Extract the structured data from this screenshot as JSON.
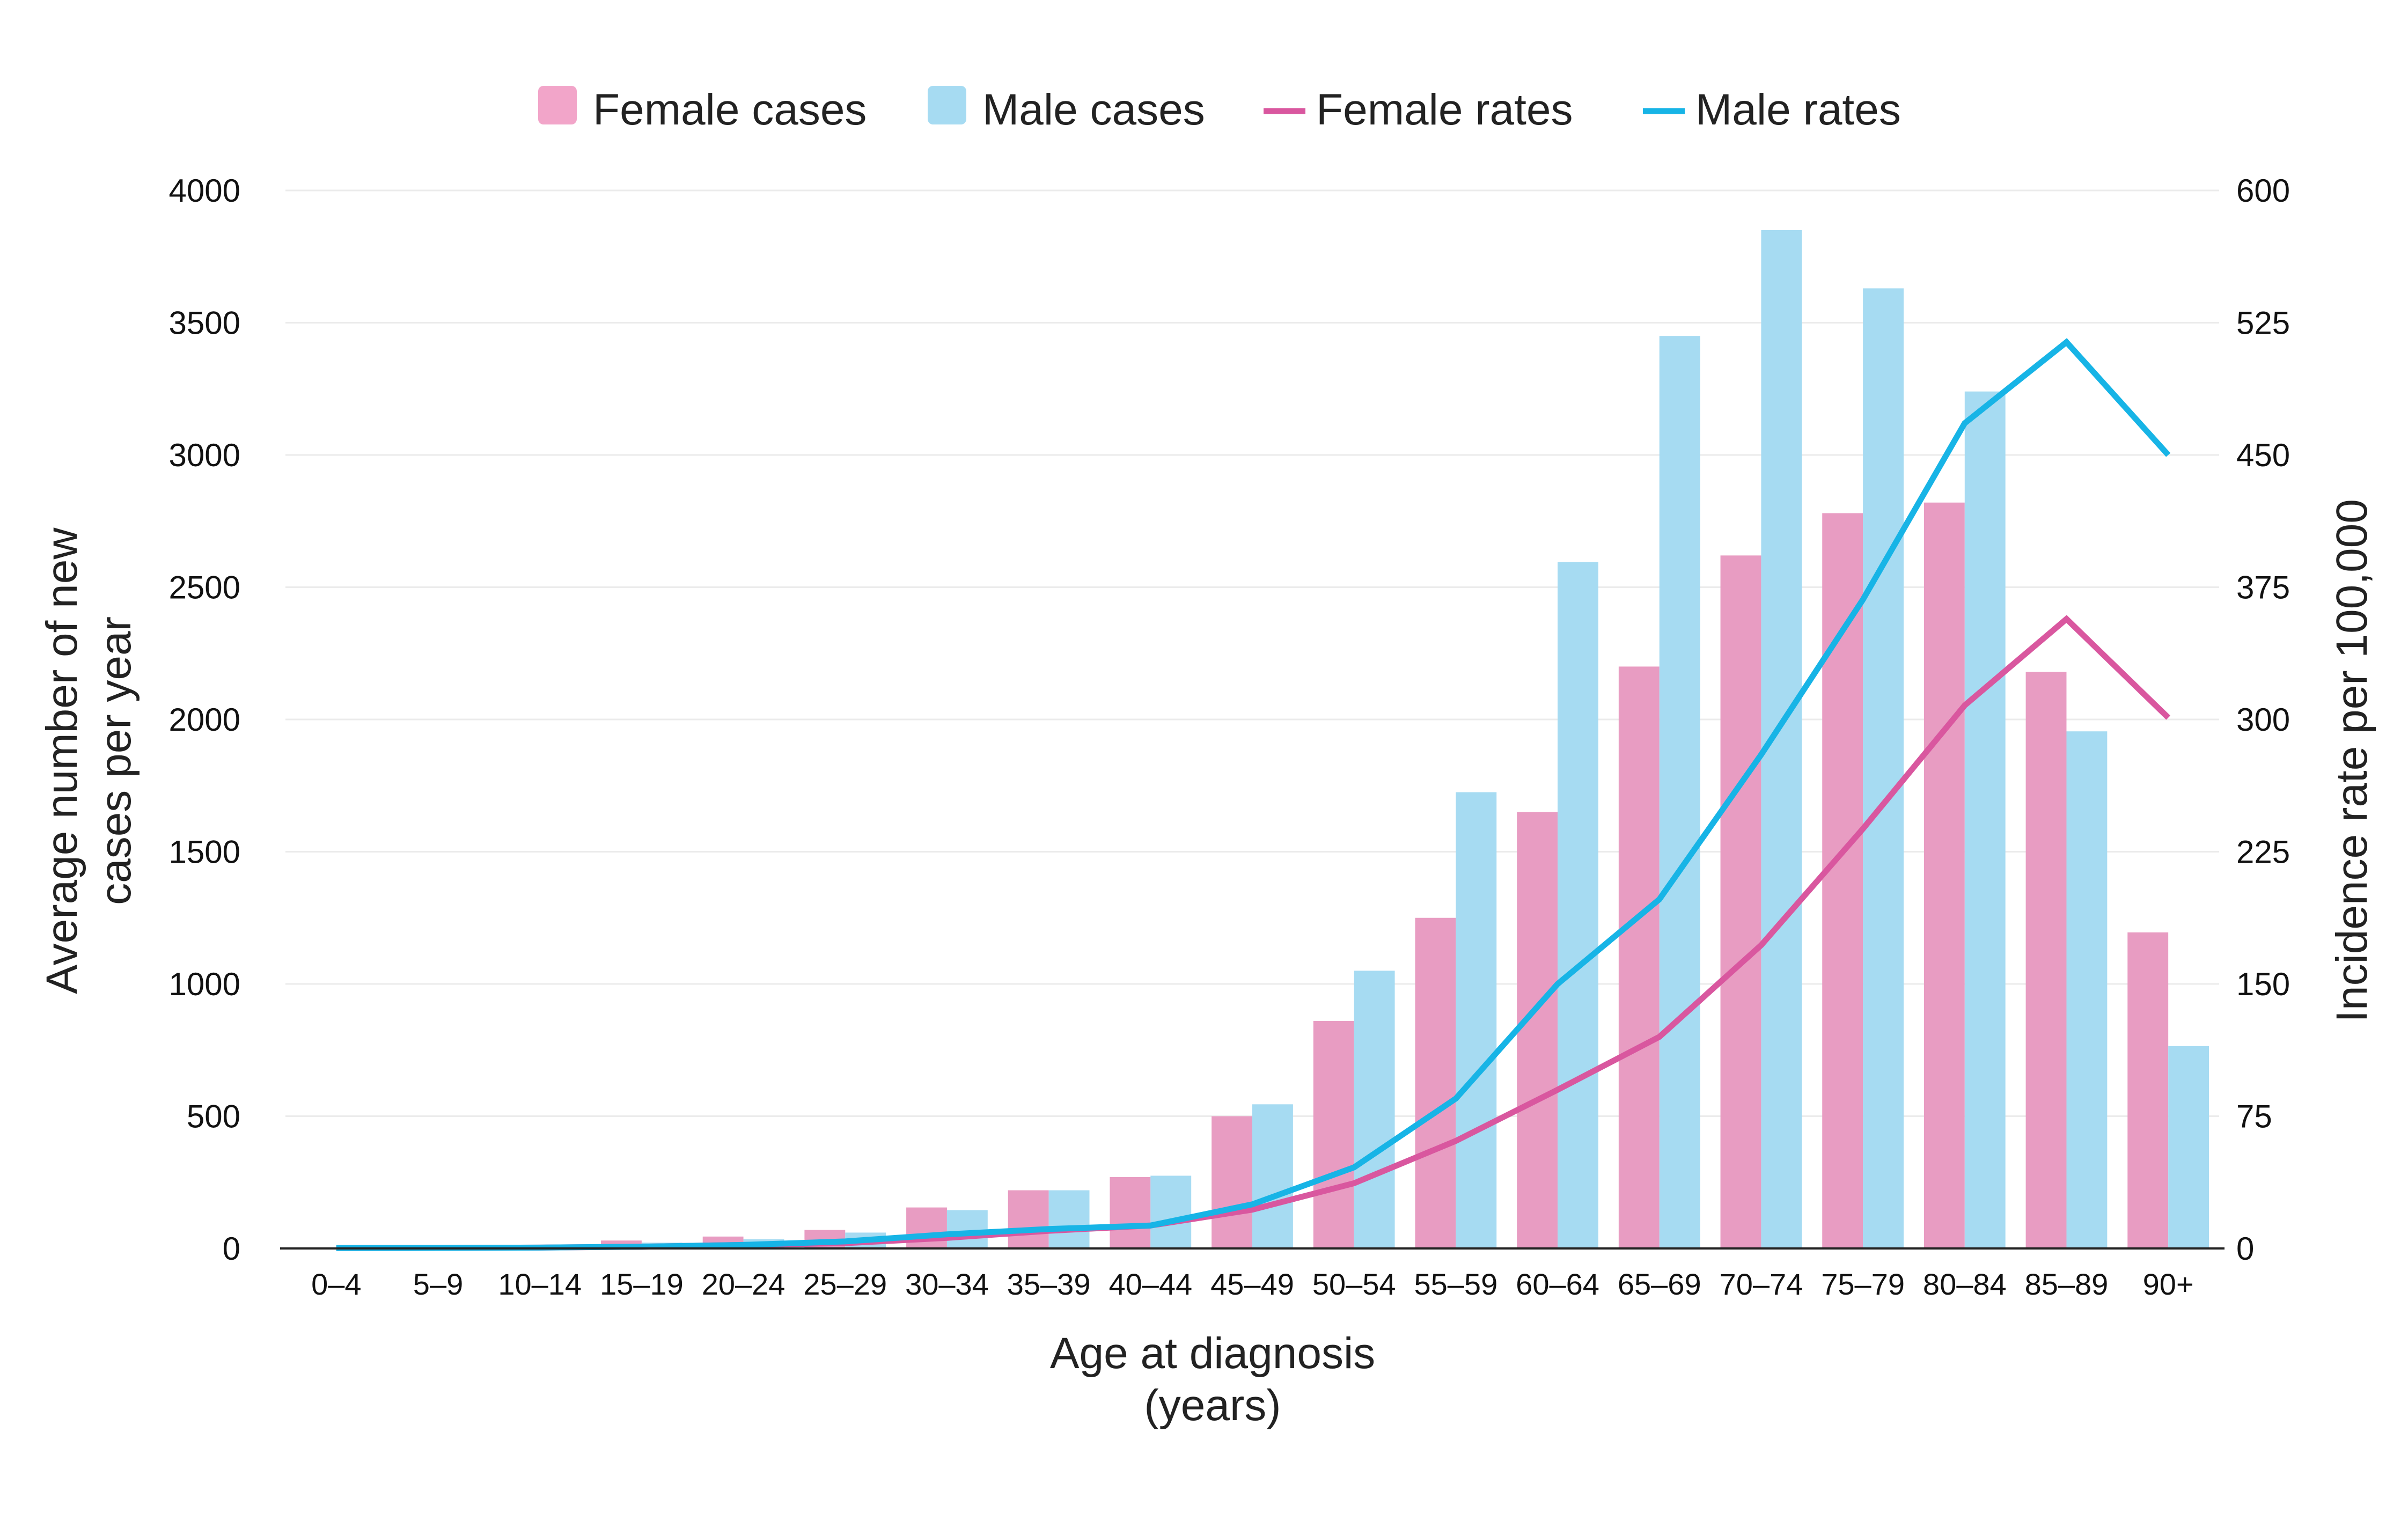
{
  "chart_data": {
    "type": "bar",
    "xlabel_lines": [
      "Age at diagnosis",
      "(years)"
    ],
    "ylabel_left_lines": [
      "Average number of new",
      "cases per year"
    ],
    "ylabel_right": "Incidence rate per 100,000",
    "categories": [
      "0–4",
      "5–9",
      "10–14",
      "15–19",
      "20–24",
      "25–29",
      "30–34",
      "35–39",
      "40–44",
      "45–49",
      "50–54",
      "55–59",
      "60–64",
      "65–69",
      "70–74",
      "75–79",
      "80–84",
      "85–89",
      "90+"
    ],
    "ylim_left": [
      0,
      4000
    ],
    "yticks_left": [
      "0",
      "500",
      "1000",
      "1500",
      "2000",
      "2500",
      "3000",
      "3500",
      "4000"
    ],
    "ylim_right": [
      0,
      600
    ],
    "yticks_right": [
      "0",
      "75",
      "150",
      "225",
      "300",
      "375",
      "450",
      "525",
      "600"
    ],
    "grid": true,
    "legend_position": "top",
    "legend": [
      {
        "label": "Female cases",
        "kind": "bar",
        "color": "#f2a5c9"
      },
      {
        "label": "Male cases",
        "kind": "bar",
        "color": "#a6dbf2"
      },
      {
        "label": "Female rates",
        "kind": "line",
        "color": "#d9579f"
      },
      {
        "label": "Male rates",
        "kind": "line",
        "color": "#17b4e6"
      }
    ],
    "bar_series": [
      {
        "name": "Female cases",
        "color": "#e89cc2",
        "values": [
          3,
          5,
          8,
          30,
          45,
          70,
          155,
          220,
          270,
          500,
          860,
          1250,
          1650,
          2200,
          2620,
          2780,
          2820,
          2180,
          1195
        ]
      },
      {
        "name": "Male cases",
        "color": "#a6dbf2",
        "values": [
          3,
          5,
          8,
          22,
          35,
          60,
          145,
          220,
          275,
          545,
          1050,
          1725,
          2595,
          3450,
          3850,
          3630,
          3240,
          1955,
          765
        ]
      }
    ],
    "line_series": [
      {
        "name": "Female rates",
        "color": "#d9579f",
        "axis": "right",
        "values": [
          0.2,
          0.3,
          0.5,
          1,
          2,
          3,
          6,
          10,
          13,
          22,
          37,
          61,
          90,
          120,
          172,
          238,
          308,
          357,
          301
        ]
      },
      {
        "name": "Male rates",
        "color": "#17b4e6",
        "axis": "right",
        "values": [
          0.2,
          0.3,
          0.5,
          1,
          2,
          4,
          8,
          11,
          13,
          25,
          46,
          85,
          150,
          198,
          280,
          368,
          468,
          514,
          450
        ]
      }
    ]
  }
}
